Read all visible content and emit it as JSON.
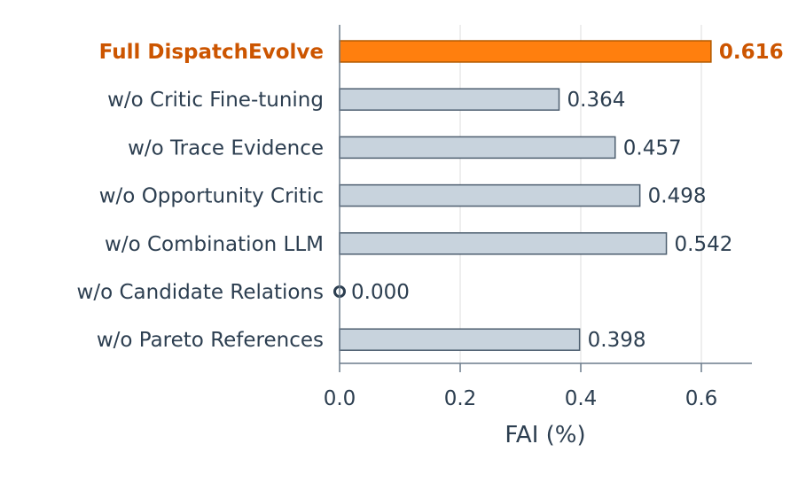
{
  "chart_data": {
    "type": "bar",
    "orientation": "horizontal",
    "categories": [
      "Full DispatchEvolve",
      "w/o Critic Fine-tuning",
      "w/o Trace Evidence",
      "w/o Opportunity Critic",
      "w/o Combination LLM",
      "w/o Candidate Relations",
      "w/o Pareto References"
    ],
    "values": [
      0.616,
      0.364,
      0.457,
      0.498,
      0.542,
      0.0,
      0.398
    ],
    "value_labels": [
      "0.616",
      "0.364",
      "0.457",
      "0.498",
      "0.542",
      "0.000",
      "0.398"
    ],
    "highlight_index": 0,
    "zero_marker_index": 5,
    "xlabel": "FAI (%)",
    "xlim": [
      0,
      0.68
    ],
    "xticks": [
      0.0,
      0.2,
      0.4,
      0.6
    ],
    "xtick_labels": [
      "0.0",
      "0.2",
      "0.4",
      "0.6"
    ],
    "grid": "vertical",
    "colors": {
      "highlight_fill": "#ff7f0e",
      "highlight_edge": "#b35a00",
      "highlight_text": "#cc5500",
      "bar_fill": "#c8d3dd",
      "bar_edge": "#4e5f70",
      "text": "#2c3e50",
      "axis": "#6b7b8b",
      "grid": "#e3e3e3"
    }
  }
}
